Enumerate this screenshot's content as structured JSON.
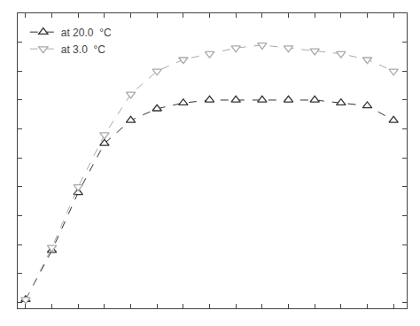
{
  "chart_data": {
    "type": "line",
    "x": [
      0,
      1,
      2,
      3,
      4,
      5,
      6,
      7,
      8,
      9,
      10,
      11,
      12,
      13,
      14
    ],
    "series": [
      {
        "name": "at 20.0  °C",
        "color": "#333333",
        "marker": "triangle-up",
        "line_style": "dash",
        "values": [
          0.01,
          0.18,
          0.38,
          0.55,
          0.63,
          0.67,
          0.69,
          0.7,
          0.7,
          0.7,
          0.7,
          0.7,
          0.69,
          0.68,
          0.63
        ]
      },
      {
        "name": "at 3.0  °C",
        "color": "#aaaaaa",
        "marker": "triangle-down",
        "line_style": "dash",
        "values": [
          0.01,
          0.19,
          0.4,
          0.58,
          0.72,
          0.8,
          0.84,
          0.86,
          0.88,
          0.89,
          0.88,
          0.87,
          0.86,
          0.84,
          0.8
        ]
      }
    ],
    "xlim": [
      -0.3,
      14.5
    ],
    "ylim": [
      -0.02,
      1.0
    ],
    "xticks": [
      0,
      1,
      2,
      3,
      4,
      5,
      6,
      7,
      8,
      9,
      10,
      11,
      12,
      13,
      14
    ],
    "yticks": [
      0.0,
      0.1,
      0.2,
      0.3,
      0.4,
      0.5,
      0.6,
      0.7,
      0.8,
      0.9,
      1.0
    ],
    "tick_labels": false,
    "grid": false,
    "legend": "upper left"
  }
}
